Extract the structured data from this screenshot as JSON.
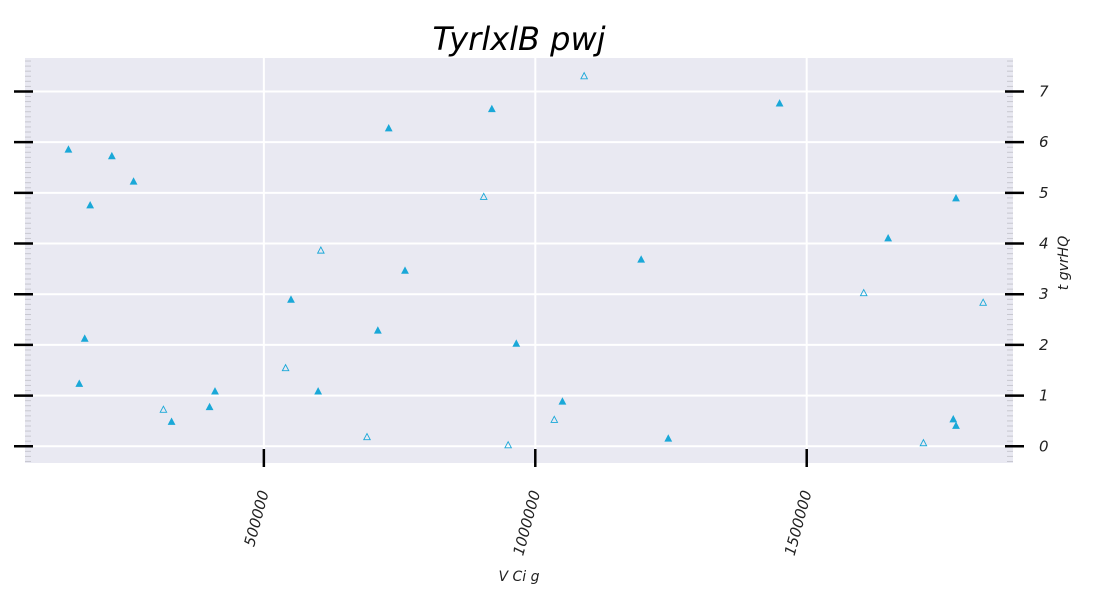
{
  "chart_data": {
    "type": "scatter",
    "title": "TyrlxlB  pwj",
    "xlabel": "V Ci g",
    "ylabel": "t gvrHQ",
    "xlim": [
      60000,
      1880000
    ],
    "ylim": [
      -0.33,
      7.66
    ],
    "x_ticks": [
      500000,
      1000000,
      1500000
    ],
    "x_tick_labels": [
      "500000",
      "1000000",
      "1500000"
    ],
    "y_ticks": [
      0,
      1,
      2,
      3,
      4,
      5,
      6,
      7
    ],
    "y_tick_labels": [
      "0",
      "1",
      "2",
      "3",
      "4",
      "5",
      "6",
      "7"
    ],
    "y_axis_side": "right",
    "x_tick_rotation": -75,
    "grid": true,
    "colors": {
      "background": "#e9e9f2",
      "grid": "#ffffff",
      "marker": "#1aa8d8"
    },
    "series": [
      {
        "marker": "filled-triangle",
        "points": [
          [
            140000,
            5.85
          ],
          [
            220000,
            5.72
          ],
          [
            260000,
            5.22
          ],
          [
            180000,
            4.75
          ],
          [
            170000,
            2.12
          ],
          [
            160000,
            1.23
          ],
          [
            330000,
            0.48
          ],
          [
            410000,
            1.08
          ],
          [
            400000,
            0.77
          ],
          [
            550000,
            2.89
          ],
          [
            600000,
            1.08
          ],
          [
            710000,
            2.28
          ],
          [
            730000,
            6.27
          ],
          [
            760000,
            3.46
          ],
          [
            920000,
            6.65
          ],
          [
            965000,
            2.02
          ],
          [
            1050000,
            0.88
          ],
          [
            1195000,
            3.68
          ],
          [
            1245000,
            0.15
          ],
          [
            1450000,
            6.76
          ],
          [
            1650000,
            4.1
          ],
          [
            1775000,
            4.89
          ],
          [
            1770000,
            0.53
          ],
          [
            1775000,
            0.4
          ]
        ]
      },
      {
        "marker": "open-triangle",
        "points": [
          [
            315000,
            0.72
          ],
          [
            540000,
            1.54
          ],
          [
            605000,
            3.86
          ],
          [
            690000,
            0.18
          ],
          [
            905000,
            4.92
          ],
          [
            950000,
            0.02
          ],
          [
            1035000,
            0.52
          ],
          [
            1090000,
            7.3
          ],
          [
            1605000,
            3.02
          ],
          [
            1715000,
            0.06
          ],
          [
            1825000,
            2.83
          ]
        ]
      }
    ]
  }
}
